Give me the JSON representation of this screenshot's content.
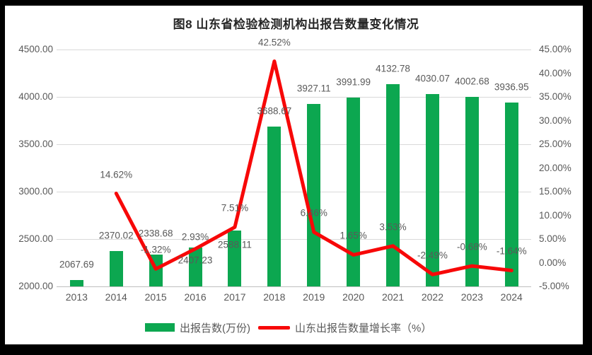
{
  "title": "图8  山东省检验检测机构出报告数量变化情况",
  "colors": {
    "bar": "#0CA750",
    "line": "#F70808",
    "grid": "#D9D9D9",
    "axis_line": "#BFBFBF",
    "label_text": "#595959",
    "title_text": "#262626",
    "frame": "#000000"
  },
  "chart_data": {
    "type": "bar",
    "subtype": "bar+line combo, dual axis",
    "title": "图8  山东省检验检测机构出报告数量变化情况",
    "categories": [
      "2013",
      "2014",
      "2015",
      "2016",
      "2017",
      "2018",
      "2019",
      "2020",
      "2021",
      "2022",
      "2023",
      "2024"
    ],
    "series": [
      {
        "name": "出报告数(万份)",
        "type": "bar",
        "axis": "left",
        "values": [
          2067.69,
          2370.02,
          2338.68,
          2407.23,
          2588.11,
          3688.67,
          3927.11,
          3991.99,
          4132.78,
          4030.07,
          4002.68,
          3936.95
        ],
        "labels": [
          "2067.69",
          "2370.02",
          "2338.68",
          "2407.23",
          "2588.11",
          "3688.67",
          "3927.11",
          "3991.99",
          "4132.78",
          "4030.07",
          "4002.68",
          "3936.95"
        ]
      },
      {
        "name": "山东出报告数量增长率（%）",
        "type": "line",
        "axis": "right",
        "values": [
          null,
          14.62,
          -1.32,
          2.93,
          7.51,
          42.52,
          6.46,
          1.65,
          3.53,
          -2.49,
          -0.68,
          -1.64
        ],
        "labels": [
          null,
          "14.62%",
          "-1.32%",
          "2.93%",
          "7.51%",
          "42.52%",
          "6.46%",
          "1.65%",
          "3.53%",
          "-2.49%",
          "-0.68%",
          "-1.64%"
        ]
      }
    ],
    "left_axis": {
      "min": 2000,
      "max": 4500,
      "step": 500,
      "tick_labels": [
        "2000.00",
        "2500.00",
        "3000.00",
        "3500.00",
        "4000.00",
        "4500.00"
      ]
    },
    "right_axis": {
      "min": -5,
      "max": 45,
      "step": 5,
      "tick_labels": [
        "-5.00%",
        "0.00%",
        "5.00%",
        "10.00%",
        "15.00%",
        "20.00%",
        "25.00%",
        "30.00%",
        "35.00%",
        "40.00%",
        "45.00%"
      ]
    },
    "grid": true,
    "legend_position": "bottom"
  },
  "legend": {
    "bar_label": "出报告数(万份)",
    "line_label": "山东出报告数量增长率（%）"
  }
}
